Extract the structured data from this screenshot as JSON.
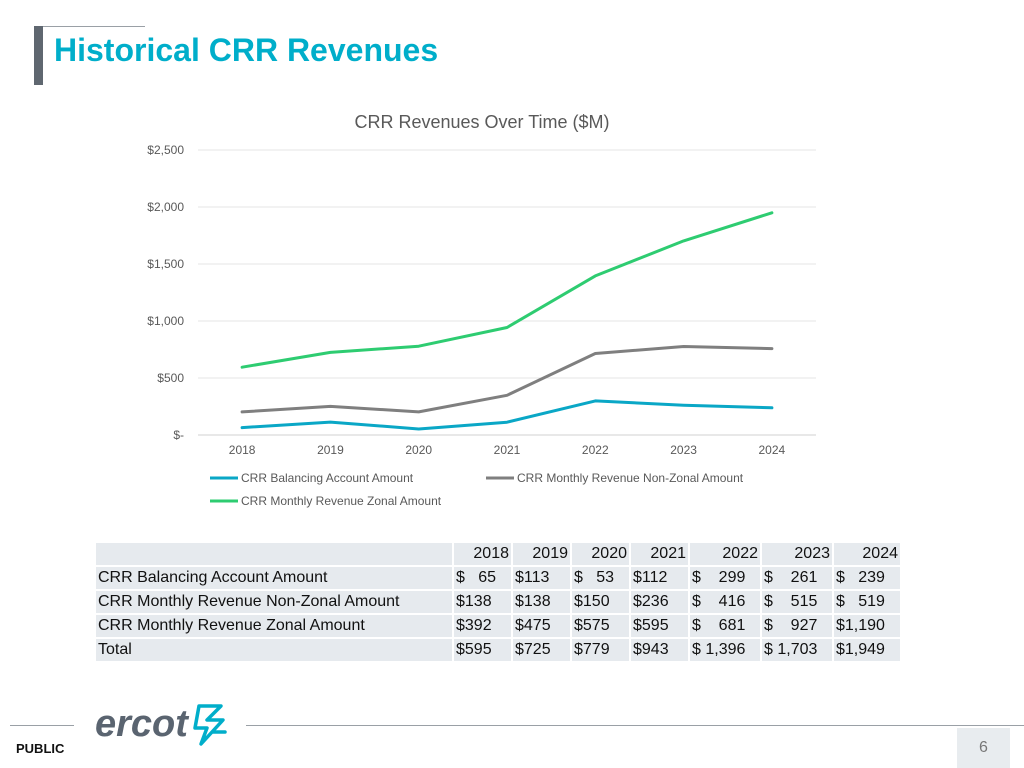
{
  "slide": {
    "title": "Historical CRR Revenues",
    "footer_label": "PUBLIC",
    "page_number": "6",
    "logo_text": "ercot",
    "colors": {
      "accent": "#00aeca",
      "title_bar": "#5f6770"
    }
  },
  "chart_data": {
    "type": "line",
    "title": "CRR Revenues Over Time ($M)",
    "xlabel": "",
    "ylabel": "",
    "categories": [
      "2018",
      "2019",
      "2020",
      "2021",
      "2022",
      "2023",
      "2024"
    ],
    "ylim": [
      0,
      2500
    ],
    "yticks": [
      0,
      500,
      1000,
      1500,
      2000,
      2500
    ],
    "ytick_labels": [
      "$-",
      "$500",
      "$1,000",
      "$1,500",
      "$2,000",
      "$2,500"
    ],
    "grid": true,
    "legend_position": "bottom",
    "series": [
      {
        "name": "CRR Balancing Account Amount",
        "color": "#0aa7c6",
        "values": [
          65,
          113,
          53,
          112,
          299,
          261,
          239
        ]
      },
      {
        "name": "CRR Monthly Revenue Non-Zonal Amount",
        "color": "#7f7f7f",
        "values": [
          203,
          251,
          203,
          348,
          715,
          776,
          758
        ]
      },
      {
        "name": "CRR Monthly Revenue Zonal Amount",
        "color": "#2ecc71",
        "values": [
          595,
          725,
          779,
          943,
          1396,
          1703,
          1949
        ]
      }
    ]
  },
  "table": {
    "header": [
      "",
      "2018",
      "2019",
      "2020",
      "2021",
      "2022",
      "2023",
      "2024"
    ],
    "rows": [
      [
        "CRR Balancing Account Amount",
        "$   65",
        "$113",
        "$   53",
        "$112",
        "$    299",
        "$    261",
        "$   239"
      ],
      [
        "CRR Monthly Revenue Non-Zonal Amount",
        "$138",
        "$138",
        "$150",
        "$236",
        "$    416",
        "$    515",
        "$   519"
      ],
      [
        "CRR Monthly Revenue Zonal Amount",
        "$392",
        "$475",
        "$575",
        "$595",
        "$    681",
        "$    927",
        "$1,190"
      ],
      [
        "Total",
        "$595",
        "$725",
        "$779",
        "$943",
        "$ 1,396",
        "$ 1,703",
        "$1,949"
      ]
    ]
  }
}
